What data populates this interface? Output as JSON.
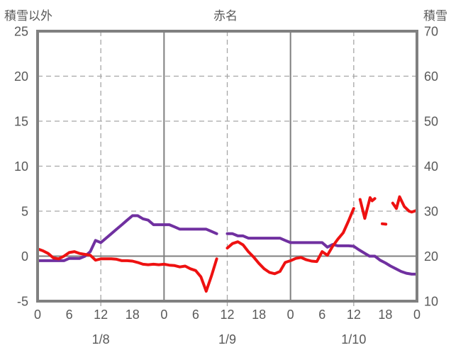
{
  "header": {
    "left_axis_title": "積雪以外",
    "chart_title": "赤名",
    "right_axis_title": "積雪"
  },
  "colors": {
    "background": "#ffffff",
    "plot_border": "#808080",
    "solid_grid": "#808080",
    "dashed_grid": "#a6a6a6",
    "text": "#595959",
    "series_other": "#ee1111",
    "series_snow": "#7030a0"
  },
  "chart_data": {
    "type": "line",
    "title": "赤名",
    "x_axis": {
      "unit": "hour",
      "min": 0,
      "max": 72,
      "tick_interval_hours": 6,
      "tick_labels": [
        "0",
        "6",
        "12",
        "18",
        "0",
        "6",
        "12",
        "18",
        "0",
        "6",
        "12",
        "18",
        "0"
      ],
      "date_labels": [
        {
          "label": "1/8",
          "hour": 12
        },
        {
          "label": "1/9",
          "hour": 36
        },
        {
          "label": "1/10",
          "hour": 60
        }
      ],
      "dashed_gridline_hours": [
        12,
        36,
        60
      ],
      "solid_gridline_hours": [
        24,
        48
      ]
    },
    "y_axis_left": {
      "title": "積雪以外",
      "min": -5,
      "max": 25,
      "tick_labels": [
        "25",
        "20",
        "15",
        "10",
        "5",
        "0",
        "-5"
      ],
      "tick_values": [
        25,
        20,
        15,
        10,
        5,
        0,
        -5
      ],
      "dashed_gridline_values": [
        5,
        10,
        15,
        20
      ],
      "zero_line_value": 0
    },
    "y_axis_right": {
      "title": "積雪",
      "min": 10,
      "max": 70,
      "tick_labels": [
        "70",
        "60",
        "50",
        "40",
        "30",
        "20",
        "10"
      ],
      "tick_values": [
        70,
        60,
        50,
        40,
        30,
        20,
        10
      ]
    },
    "data_gap_hours": [
      34,
      36
    ],
    "series": [
      {
        "name": "積雪",
        "axis": "right",
        "color": "#7030a0",
        "points": [
          [
            0,
            19
          ],
          [
            1,
            19
          ],
          [
            2,
            19
          ],
          [
            3,
            19
          ],
          [
            4,
            19
          ],
          [
            5,
            19
          ],
          [
            6,
            19.5
          ],
          [
            7,
            19.5
          ],
          [
            8,
            19.5
          ],
          [
            9,
            20
          ],
          [
            10,
            21
          ],
          [
            11,
            23.5
          ],
          [
            12,
            23
          ],
          [
            13,
            24
          ],
          [
            14,
            25
          ],
          [
            15,
            26
          ],
          [
            16,
            27
          ],
          [
            17,
            28
          ],
          [
            18,
            29
          ],
          [
            19,
            29
          ],
          [
            20,
            28.3
          ],
          [
            21,
            28
          ],
          [
            22,
            27
          ],
          [
            23,
            27
          ],
          [
            24,
            27
          ],
          [
            25,
            27
          ],
          [
            26,
            26.5
          ],
          [
            27,
            26
          ],
          [
            28,
            26
          ],
          [
            29,
            26
          ],
          [
            30,
            26
          ],
          [
            31,
            26
          ],
          [
            32,
            26
          ],
          [
            33,
            25.5
          ],
          [
            34,
            25
          ],
          [
            36,
            25
          ],
          [
            37,
            25
          ],
          [
            38,
            24.5
          ],
          [
            39,
            24.5
          ],
          [
            40,
            24
          ],
          [
            41,
            24
          ],
          [
            42,
            24
          ],
          [
            43,
            24
          ],
          [
            44,
            24
          ],
          [
            45,
            24
          ],
          [
            46,
            24
          ],
          [
            47,
            23.5
          ],
          [
            48,
            23
          ],
          [
            49,
            23
          ],
          [
            50,
            23
          ],
          [
            51,
            23
          ],
          [
            52,
            23
          ],
          [
            53,
            23
          ],
          [
            54,
            23
          ],
          [
            55,
            22
          ],
          [
            56,
            22.6
          ],
          [
            57,
            22.3
          ],
          [
            58,
            22.3
          ],
          [
            59,
            22.3
          ],
          [
            60,
            22.2
          ],
          [
            61,
            21.4
          ],
          [
            62,
            20.7
          ],
          [
            63,
            20
          ],
          [
            64,
            20
          ],
          [
            65,
            19.1
          ],
          [
            66,
            18.5
          ],
          [
            67,
            17.8
          ],
          [
            68,
            17.2
          ],
          [
            69,
            16.6
          ],
          [
            70,
            16.2
          ],
          [
            71,
            16
          ],
          [
            72,
            16
          ]
        ]
      },
      {
        "name": "積雪以外",
        "axis": "left",
        "color": "#ee1111",
        "points": [
          [
            0,
            0.8
          ],
          [
            1,
            0.6
          ],
          [
            2,
            0.3
          ],
          [
            3,
            -0.2
          ],
          [
            4,
            -0.3
          ],
          [
            5,
            0
          ],
          [
            6,
            0.4
          ],
          [
            7,
            0.5
          ],
          [
            8,
            0.3
          ],
          [
            9,
            0.2
          ],
          [
            10,
            0.1
          ],
          [
            11,
            -0.45
          ],
          [
            12,
            -0.3
          ],
          [
            13,
            -0.3
          ],
          [
            14,
            -0.3
          ],
          [
            15,
            -0.35
          ],
          [
            16,
            -0.5
          ],
          [
            17,
            -0.5
          ],
          [
            18,
            -0.55
          ],
          [
            19,
            -0.7
          ],
          [
            20,
            -0.9
          ],
          [
            21,
            -0.95
          ],
          [
            22,
            -0.9
          ],
          [
            23,
            -0.95
          ],
          [
            24,
            -0.9
          ],
          [
            25,
            -1.0
          ],
          [
            26,
            -1.05
          ],
          [
            27,
            -1.2
          ],
          [
            28,
            -1.1
          ],
          [
            29,
            -1.4
          ],
          [
            30,
            -1.6
          ],
          [
            31,
            -2.3
          ],
          [
            32,
            -3.9
          ],
          [
            33,
            -2.2
          ],
          [
            34,
            -0.3
          ],
          [
            36,
            0.9
          ],
          [
            37,
            1.4
          ],
          [
            38,
            1.6
          ],
          [
            39,
            1.25
          ],
          [
            40,
            0.5
          ],
          [
            41,
            -0.1
          ],
          [
            42,
            -0.8
          ],
          [
            43,
            -1.4
          ],
          [
            44,
            -1.8
          ],
          [
            45,
            -1.95
          ],
          [
            46,
            -1.7
          ],
          [
            47,
            -0.7
          ],
          [
            48,
            -0.5
          ],
          [
            49,
            -0.25
          ],
          [
            50,
            -0.15
          ],
          [
            51,
            -0.4
          ],
          [
            52,
            -0.55
          ],
          [
            53,
            -0.6
          ],
          [
            54,
            0.5
          ],
          [
            55,
            0.1
          ],
          [
            56,
            1.1
          ],
          [
            57,
            1.9
          ],
          [
            58,
            2.6
          ],
          [
            59,
            3.9
          ],
          [
            60,
            5.3
          ],
          [
            61.2,
            6.3
          ],
          [
            62.1,
            4.2
          ],
          [
            63.1,
            6.5
          ],
          [
            63.5,
            6.15
          ],
          [
            64,
            6.4
          ],
          [
            65.4,
            3.6
          ],
          [
            66.1,
            3.55
          ],
          [
            67.4,
            5.9
          ],
          [
            68.1,
            5.3
          ],
          [
            68.7,
            6.6
          ],
          [
            69.6,
            5.5
          ],
          [
            70.5,
            5.0
          ],
          [
            71,
            4.9
          ],
          [
            72,
            5.1
          ]
        ]
      }
    ]
  }
}
